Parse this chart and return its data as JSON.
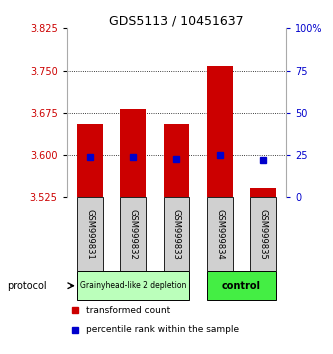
{
  "title": "GDS5113 / 10451637",
  "samples": [
    "GSM999831",
    "GSM999832",
    "GSM999833",
    "GSM999834",
    "GSM999835"
  ],
  "bar_bottoms": [
    3.525,
    3.525,
    3.525,
    3.525,
    3.525
  ],
  "bar_tops": [
    3.655,
    3.682,
    3.655,
    3.758,
    3.542
  ],
  "blue_values": [
    3.596,
    3.596,
    3.593,
    3.6,
    3.591
  ],
  "ylim": [
    3.525,
    3.825
  ],
  "yticks": [
    3.525,
    3.6,
    3.675,
    3.75,
    3.825
  ],
  "right_yticks": [
    0,
    25,
    50,
    75,
    100
  ],
  "right_ytick_labels": [
    "0",
    "25",
    "50",
    "75",
    "100%"
  ],
  "bar_color": "#cc0000",
  "blue_color": "#0000cc",
  "grid_color": "#000000",
  "bg_color": "#ffffff",
  "group1_label": "Grainyhead-like 2 depletion",
  "group2_label": "control",
  "group1_color": "#bbffbb",
  "group2_color": "#44ee44",
  "group1_samples": [
    0,
    1,
    2
  ],
  "group2_samples": [
    3,
    4
  ],
  "protocol_label": "protocol",
  "legend_red_label": "transformed count",
  "legend_blue_label": "percentile rank within the sample",
  "bar_width": 0.6
}
